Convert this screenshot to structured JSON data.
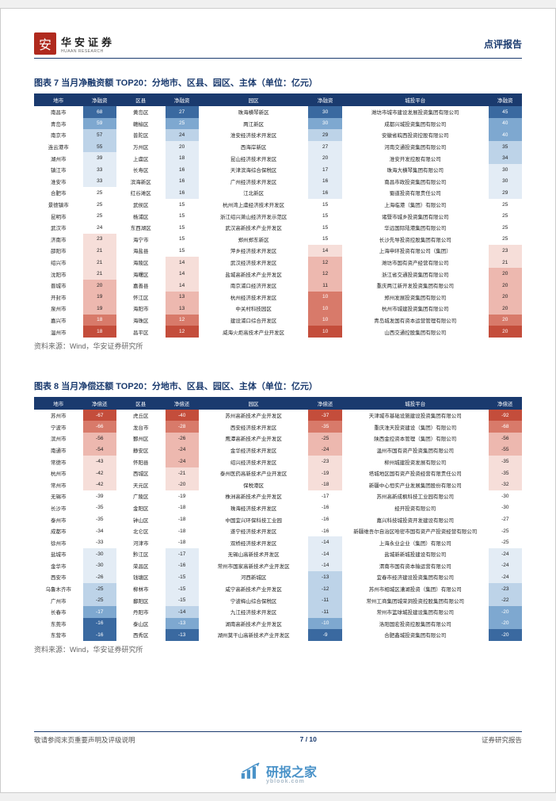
{
  "header": {
    "logo_char": "安",
    "logo_cn": "华安证券",
    "logo_en": "HUAAN RESEARCH",
    "right": "点评报告"
  },
  "table7": {
    "title": "图表 7 当月净融资额 TOP20：分地市、区县、园区、主体（单位：亿元）",
    "headers": [
      "地市",
      "净融资",
      "区县",
      "净融资",
      "园区",
      "净融资",
      "城投平台",
      "净融资"
    ],
    "col_widths": [
      "8%",
      "5.5%",
      "8%",
      "5.5%",
      "18%",
      "5.5%",
      "24%",
      "5.5%"
    ],
    "source": "资料来源：Wind，华安证券研究所",
    "colors": {
      "deep_red": "#c44d3b",
      "red": "#d87a6a",
      "lred": "#edb8af",
      "faint_red": "#f6ded9",
      "white": "#ffffff",
      "faint_blue": "#e3ecf5",
      "lblue": "#bdd3e8",
      "blue": "#7ea8d0",
      "deep_blue": "#3a69a0"
    },
    "rows": [
      {
        "c1": "南昌市",
        "v1": 68,
        "cc1": "deep_blue",
        "c2": "黄岛区",
        "v2": 27,
        "cc2": "deep_blue",
        "c3": "珠海横琴新区",
        "v3": 30,
        "cc3": "deep_blue",
        "c4": "潍坊市城市建设发展投资集团有限公司",
        "v4": 45,
        "cc4": "deep_blue"
      },
      {
        "c1": "青岛市",
        "v1": 59,
        "cc1": "blue",
        "c2": "赣榆区",
        "v2": 25,
        "cc2": "blue",
        "c3": "两江新区",
        "v3": 30,
        "cc3": "blue",
        "c4": "成都兴城投资集团有限公司",
        "v4": 40,
        "cc4": "blue"
      },
      {
        "c1": "南京市",
        "v1": 57,
        "cc1": "lblue",
        "c2": "普陀区",
        "v2": 24,
        "cc2": "lblue",
        "c3": "淮安经济技术开发区",
        "v3": 29,
        "cc3": "lblue",
        "c4": "安徽省皖西投资控股有限公司",
        "v4": 40,
        "cc4": "blue"
      },
      {
        "c1": "连云港市",
        "v1": 55,
        "cc1": "lblue",
        "c2": "万州区",
        "v2": 20,
        "cc2": "faint_blue",
        "c3": "西海岸新区",
        "v3": 27,
        "cc3": "faint_blue",
        "c4": "河南交通投资集团有限公司",
        "v4": 35,
        "cc4": "lblue"
      },
      {
        "c1": "湖州市",
        "v1": 39,
        "cc1": "faint_blue",
        "c2": "上虞区",
        "v2": 18,
        "cc2": "faint_blue",
        "c3": "昆山经济技术开发区",
        "v3": 20,
        "cc3": "faint_blue",
        "c4": "淮安开发控股有限公司",
        "v4": 34,
        "cc4": "lblue"
      },
      {
        "c1": "镇江市",
        "v1": 33,
        "cc1": "faint_blue",
        "c2": "长寿区",
        "v2": 16,
        "cc2": "faint_blue",
        "c3": "天津滨海综合保税区",
        "v3": 17,
        "cc3": "faint_blue",
        "c4": "珠海大横琴集团有限公司",
        "v4": 30,
        "cc4": "faint_blue"
      },
      {
        "c1": "淮安市",
        "v1": 33,
        "cc1": "faint_blue",
        "c2": "滨海新区",
        "v2": 16,
        "cc2": "faint_blue",
        "c3": "广州经济技术开发区",
        "v3": 16,
        "cc3": "faint_blue",
        "c4": "南昌市政投资集团有限公司",
        "v4": 30,
        "cc4": "faint_blue"
      },
      {
        "c1": "合肥市",
        "v1": 25,
        "cc1": "white",
        "c2": "红谷滩区",
        "v2": 16,
        "cc2": "faint_blue",
        "c3": "江北新区",
        "v3": 16,
        "cc3": "faint_blue",
        "c4": "蜀道投资有限责任公司",
        "v4": 29,
        "cc4": "faint_blue"
      },
      {
        "c1": "景德镇市",
        "v1": 25,
        "cc1": "white",
        "c2": "武侯区",
        "v2": 15,
        "cc2": "white",
        "c3": "杭州湾上虞经济技术开发区",
        "v3": 15,
        "cc3": "white",
        "c4": "上海临港（集团）有限公司",
        "v4": 25,
        "cc4": "white"
      },
      {
        "c1": "昆明市",
        "v1": 25,
        "cc1": "white",
        "c2": "杨浦区",
        "v2": 15,
        "cc2": "white",
        "c3": "浙江绍兴萧山经济开发示范区",
        "v3": 15,
        "cc3": "white",
        "c4": "诸暨市城乡投资集团有限公司",
        "v4": 25,
        "cc4": "white"
      },
      {
        "c1": "武汉市",
        "v1": 24,
        "cc1": "white",
        "c2": "东西湖区",
        "v2": 15,
        "cc2": "white",
        "c3": "武汉高新技术产业开发区",
        "v3": 15,
        "cc3": "white",
        "c4": "华远国际陆港集团有限公司",
        "v4": 25,
        "cc4": "white"
      },
      {
        "c1": "济南市",
        "v1": 23,
        "cc1": "faint_red",
        "c2": "海宁市",
        "v2": 15,
        "cc2": "white",
        "c3": "郑州郑东新区",
        "v3": 15,
        "cc3": "white",
        "c4": "长沙先导投资控股集团有限公司",
        "v4": 25,
        "cc4": "white"
      },
      {
        "c1": "邵阳市",
        "v1": 21,
        "cc1": "faint_red",
        "c2": "海盐县",
        "v2": 15,
        "cc2": "white",
        "c3": "萍乡经济技术开发区",
        "v3": 14,
        "cc3": "faint_red",
        "c4": "上海申环投资有限公司（集团）",
        "v4": 23,
        "cc4": "faint_red"
      },
      {
        "c1": "绍兴市",
        "v1": 21,
        "cc1": "faint_red",
        "c2": "海陵区",
        "v2": 14,
        "cc2": "faint_red",
        "c3": "武汉经济技术开发区",
        "v3": 12,
        "cc3": "lred",
        "c4": "潍坊市国有资产经营有限公司",
        "v4": 21,
        "cc4": "faint_red"
      },
      {
        "c1": "沈阳市",
        "v1": 21,
        "cc1": "faint_red",
        "c2": "海曙区",
        "v2": 14,
        "cc2": "faint_red",
        "c3": "盐城高新技术产业开发区",
        "v3": 12,
        "cc3": "lred",
        "c4": "浙江省交通投资集团有限公司",
        "v4": 20,
        "cc4": "lred"
      },
      {
        "c1": "晋城市",
        "v1": 20,
        "cc1": "lred",
        "c2": "嘉善县",
        "v2": 14,
        "cc2": "faint_red",
        "c3": "南京浦口经济开发区",
        "v3": 11,
        "cc3": "lred",
        "c4": "重庆两江新开发投资集团有限公司",
        "v4": 20,
        "cc4": "lred"
      },
      {
        "c1": "开封市",
        "v1": 19,
        "cc1": "lred",
        "c2": "怀江区",
        "v2": 13,
        "cc2": "lred",
        "c3": "杭州经济技术开发区",
        "v3": 10,
        "cc3": "red",
        "c4": "郑州发展投资集团有限公司",
        "v4": 20,
        "cc4": "lred"
      },
      {
        "c1": "泉州市",
        "v1": 19,
        "cc1": "lred",
        "c2": "海阳市",
        "v2": 13,
        "cc2": "lred",
        "c3": "中关村科技园区",
        "v3": 10,
        "cc3": "red",
        "c4": "杭州市城建投资集团有限公司",
        "v4": 20,
        "cc4": "lred"
      },
      {
        "c1": "嘉兴市",
        "v1": 18,
        "cc1": "red",
        "c2": "海珠区",
        "v2": 12,
        "cc2": "red",
        "c3": "建设浦口综合开发区",
        "v3": 10,
        "cc3": "red",
        "c4": "青岛城发国有资本运营管理有限公司",
        "v4": 20,
        "cc4": "red"
      },
      {
        "c1": "温州市",
        "v1": 18,
        "cc1": "deep_red",
        "c2": "昌平区",
        "v2": 12,
        "cc2": "deep_red",
        "c3": "威海火炬高技术产业开发区",
        "v3": 10,
        "cc3": "deep_red",
        "c4": "山西交通控股集团有限公司",
        "v4": 20,
        "cc4": "deep_red"
      }
    ]
  },
  "table8": {
    "title": "图表 8 当月净偿还额 TOP20：分地市、区县、园区、主体（单位：亿元）",
    "headers": [
      "地市",
      "净偿还",
      "区县",
      "净偿还",
      "园区",
      "净偿还",
      "城投平台",
      "净偿还"
    ],
    "col_widths": [
      "8%",
      "5.5%",
      "8%",
      "5.5%",
      "18%",
      "5.5%",
      "24%",
      "5.5%"
    ],
    "source": "资料来源：Wind，华安证券研究所",
    "colors": {
      "deep_red": "#c44d3b",
      "red": "#d87a6a",
      "lred": "#edb8af",
      "faint_red": "#f6ded9",
      "white": "#ffffff",
      "faint_blue": "#e3ecf5",
      "lblue": "#bdd3e8",
      "blue": "#7ea8d0",
      "deep_blue": "#3a69a0"
    },
    "rows": [
      {
        "c1": "苏州市",
        "v1": -67,
        "cc1": "deep_red",
        "c2": "虎丘区",
        "v2": -40,
        "cc2": "deep_red",
        "c3": "苏州高新技术产业开发区",
        "v3": -37,
        "cc3": "deep_red",
        "c4": "天津城市基础设施建设投资集团有限公司",
        "v4": -92,
        "cc4": "deep_red"
      },
      {
        "c1": "宁波市",
        "v1": -66,
        "cc1": "red",
        "c2": "龙台市",
        "v2": -28,
        "cc2": "red",
        "c3": "西安经济技术开发区",
        "v3": -35,
        "cc3": "red",
        "c4": "重庆淮天投资建设（集团）有限公司",
        "v4": -68,
        "cc4": "red"
      },
      {
        "c1": "滨州市",
        "v1": -56,
        "cc1": "lred",
        "c2": "鄞州区",
        "v2": -26,
        "cc2": "lred",
        "c3": "鹰潭高新技术产业开发区",
        "v3": -25,
        "cc3": "lred",
        "c4": "陕西金控资本管理（集团）有限公司",
        "v4": -56,
        "cc4": "lred"
      },
      {
        "c1": "南通市",
        "v1": -54,
        "cc1": "lred",
        "c2": "静安区",
        "v2": -24,
        "cc2": "lred",
        "c3": "金华经济技术开发区",
        "v3": -24,
        "cc3": "lred",
        "c4": "温州市国有资产投资集团有限公司",
        "v4": -55,
        "cc4": "lred"
      },
      {
        "c1": "常德市",
        "v1": -43,
        "cc1": "faint_red",
        "c2": "怀阳县",
        "v2": -24,
        "cc2": "lred",
        "c3": "绍兴经济技术开发区",
        "v3": -23,
        "cc3": "faint_red",
        "c4": "柳州城建投资发展有限公司",
        "v4": -35,
        "cc4": "faint_red"
      },
      {
        "c1": "杭州市",
        "v1": -42,
        "cc1": "faint_red",
        "c2": "西城区",
        "v2": -21,
        "cc2": "faint_red",
        "c3": "泰州医药高新技术产业开发区",
        "v3": -19,
        "cc3": "faint_red",
        "c4": "塔城地区国有资产投资经营有限责任公司",
        "v4": -35,
        "cc4": "faint_red"
      },
      {
        "c1": "常州市",
        "v1": -42,
        "cc1": "faint_red",
        "c2": "天元区",
        "v2": -20,
        "cc2": "faint_red",
        "c3": "保税港区",
        "v3": -18,
        "cc3": "faint_red",
        "c4": "新疆中心恒实产业发展集团股份有限公司",
        "v4": -32,
        "cc4": "faint_red"
      },
      {
        "c1": "无锡市",
        "v1": -39,
        "cc1": "white",
        "c2": "广陵区",
        "v2": -19,
        "cc2": "white",
        "c3": "株洲高新技术产业开发区",
        "v3": -17,
        "cc3": "white",
        "c4": "苏州高新成枫科技工业园有限公司",
        "v4": -30,
        "cc4": "white"
      },
      {
        "c1": "长沙市",
        "v1": -35,
        "cc1": "white",
        "c2": "金阳区",
        "v2": -18,
        "cc2": "white",
        "c3": "珠海经济技术开发区",
        "v3": -16,
        "cc3": "white",
        "c4": "经开投资有限公司",
        "v4": -30,
        "cc4": "white"
      },
      {
        "c1": "泰州市",
        "v1": -35,
        "cc1": "white",
        "c2": "钟山区",
        "v2": -18,
        "cc2": "white",
        "c3": "中国宜兴环保科技工业园",
        "v3": -16,
        "cc3": "white",
        "c4": "嘉兴科技城投资开发建设有限公司",
        "v4": -27,
        "cc4": "white"
      },
      {
        "c1": "成都市",
        "v1": -34,
        "cc1": "white",
        "c2": "北仑区",
        "v2": -18,
        "cc2": "white",
        "c3": "遂宁经济技术开发区",
        "v3": -16,
        "cc3": "white",
        "c4": "新疆维吾尔自治区哈密市国有资产产投资经营有限公司",
        "v4": -25,
        "cc4": "white"
      },
      {
        "c1": "徐州市",
        "v1": -33,
        "cc1": "white",
        "c2": "河津市",
        "v2": -18,
        "cc2": "white",
        "c3": "双桥经济技术开发区",
        "v3": -14,
        "cc3": "faint_blue",
        "c4": "上海永业企业（集团）有限公司",
        "v4": -25,
        "cc4": "white"
      },
      {
        "c1": "盐城市",
        "v1": -30,
        "cc1": "faint_blue",
        "c2": "黔江区",
        "v2": -17,
        "cc2": "faint_blue",
        "c3": "无锡山高新技术开发区",
        "v3": -14,
        "cc3": "faint_blue",
        "c4": "盐城新新城投建设有限公司",
        "v4": -24,
        "cc4": "faint_blue"
      },
      {
        "c1": "金华市",
        "v1": -30,
        "cc1": "faint_blue",
        "c2": "荣昌区",
        "v2": -16,
        "cc2": "faint_blue",
        "c3": "常州市国家高新技术产业开发区",
        "v3": -14,
        "cc3": "faint_blue",
        "c4": "渭南市国有资本输运营有限公司",
        "v4": -24,
        "cc4": "faint_blue"
      },
      {
        "c1": "西安市",
        "v1": -26,
        "cc1": "faint_blue",
        "c2": "钱塘区",
        "v2": -15,
        "cc2": "faint_blue",
        "c3": "河西新城区",
        "v3": -13,
        "cc3": "lblue",
        "c4": "宜春市经济建设投资集团有限公司",
        "v4": -24,
        "cc4": "faint_blue"
      },
      {
        "c1": "乌鲁木齐市",
        "v1": -25,
        "cc1": "lblue",
        "c2": "柳林市",
        "v2": -15,
        "cc2": "faint_blue",
        "c3": "咸宁高新技术产业开发区",
        "v3": -12,
        "cc3": "lblue",
        "c4": "苏州市相城区漕湖投资（集团）有限公司",
        "v4": -23,
        "cc4": "lblue"
      },
      {
        "c1": "广州市",
        "v1": -25,
        "cc1": "lblue",
        "c2": "鄱阳区",
        "v2": -15,
        "cc2": "faint_blue",
        "c3": "宁波梅山综合保税区",
        "v3": -11,
        "cc3": "lblue",
        "c4": "常州工商集团城荣洞投资控股集团有限公司",
        "v4": -22,
        "cc4": "lblue"
      },
      {
        "c1": "长春市",
        "v1": -17,
        "cc1": "blue",
        "c2": "丹阳市",
        "v2": -14,
        "cc2": "lblue",
        "c3": "九江经济技术开发区",
        "v3": -11,
        "cc3": "lblue",
        "c4": "常州市篮球城投建设集团有限公司",
        "v4": -20,
        "cc4": "blue"
      },
      {
        "c1": "东莞市",
        "v1": -16,
        "cc1": "deep_blue",
        "c2": "泰山区",
        "v2": -13,
        "cc2": "blue",
        "c3": "湖南高新技术产业开发区",
        "v3": -10,
        "cc3": "blue",
        "c4": "洛阳国宏投资控股集团有限公司",
        "v4": -20,
        "cc4": "blue"
      },
      {
        "c1": "东营市",
        "v1": -16,
        "cc1": "deep_blue",
        "c2": "西秀区",
        "v2": -13,
        "cc2": "deep_blue",
        "c3": "湖州莫干山高新技术产业开发区",
        "v3": -9,
        "cc3": "deep_blue",
        "c4": "合肥鑫城投资集团有限公司",
        "v4": -20,
        "cc4": "deep_blue"
      }
    ]
  },
  "footer": {
    "left": "敬请参阅末页重要声明及评级说明",
    "mid_a": "7",
    "mid_sep": " / ",
    "mid_b": "10",
    "right": "证券研究报告"
  },
  "watermark": {
    "main": "研报之家",
    "sub": "yblook.com"
  }
}
